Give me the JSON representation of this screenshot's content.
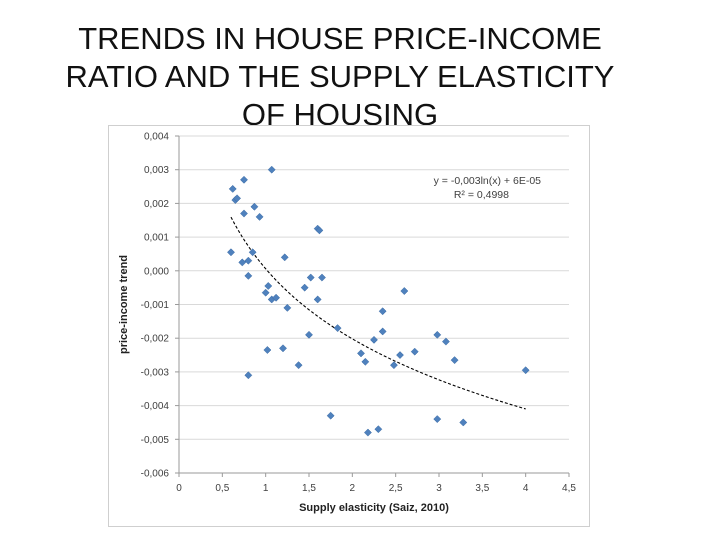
{
  "slide": {
    "title_lines": [
      "TRENDS IN HOUSE PRICE-INCOME",
      "RATIO AND THE SUPPLY ELASTICITY",
      "OF HOUSING"
    ]
  },
  "chart_data": {
    "type": "scatter",
    "xlabel": "Supply elasticity (Saiz, 2010)",
    "ylabel": "price-income trend",
    "xlim": [
      0,
      4.5
    ],
    "ylim": [
      -0.006,
      0.004
    ],
    "x_ticks": [
      0,
      0.5,
      1,
      1.5,
      2,
      2.5,
      3,
      3.5,
      4,
      4.5
    ],
    "x_tick_labels": [
      "0",
      "0,5",
      "1",
      "1,5",
      "2",
      "2,5",
      "3",
      "3,5",
      "4",
      "4,5"
    ],
    "y_ticks": [
      0.004,
      0.003,
      0.002,
      0.001,
      0.0,
      -0.001,
      -0.002,
      -0.003,
      -0.004,
      -0.005,
      -0.006
    ],
    "y_tick_labels": [
      "0,004",
      "0,003",
      "0,002",
      "0,001",
      "0,000",
      "-0,001",
      "-0,002",
      "-0,003",
      "-0,004",
      "-0,005",
      "-0,006"
    ],
    "grid": "horizontal",
    "marker_color": "#4f81bd",
    "trendline": {
      "type": "logarithmic",
      "equation": "y = -0,003ln(x) + 6E-05",
      "r_squared": "R² = 0,4998",
      "a": -0.003,
      "b": 6e-05,
      "x_range": [
        0.6,
        4.0
      ],
      "color": "#000000",
      "style": "dashed"
    },
    "points": [
      {
        "x": 0.62,
        "y": 0.00243
      },
      {
        "x": 0.65,
        "y": 0.0021
      },
      {
        "x": 0.67,
        "y": 0.00215
      },
      {
        "x": 0.75,
        "y": 0.0027
      },
      {
        "x": 0.75,
        "y": 0.0017
      },
      {
        "x": 0.87,
        "y": 0.0019
      },
      {
        "x": 0.93,
        "y": 0.0016
      },
      {
        "x": 1.07,
        "y": 0.003
      },
      {
        "x": 0.6,
        "y": 0.00055
      },
      {
        "x": 0.73,
        "y": 0.00025
      },
      {
        "x": 0.8,
        "y": 0.0003
      },
      {
        "x": 0.85,
        "y": 0.00055
      },
      {
        "x": 0.8,
        "y": -0.00015
      },
      {
        "x": 1.0,
        "y": -0.00065
      },
      {
        "x": 1.03,
        "y": -0.00045
      },
      {
        "x": 1.07,
        "y": -0.00085
      },
      {
        "x": 1.12,
        "y": -0.0008
      },
      {
        "x": 1.22,
        "y": 0.0004
      },
      {
        "x": 1.25,
        "y": -0.0011
      },
      {
        "x": 0.8,
        "y": -0.0031
      },
      {
        "x": 1.02,
        "y": -0.00235
      },
      {
        "x": 1.2,
        "y": -0.0023
      },
      {
        "x": 1.38,
        "y": -0.0028
      },
      {
        "x": 1.45,
        "y": -0.0005
      },
      {
        "x": 1.52,
        "y": -0.0002
      },
      {
        "x": 1.6,
        "y": 0.00125
      },
      {
        "x": 1.62,
        "y": 0.0012
      },
      {
        "x": 1.6,
        "y": -0.00085
      },
      {
        "x": 1.65,
        "y": -0.0002
      },
      {
        "x": 1.5,
        "y": -0.0019
      },
      {
        "x": 1.75,
        "y": -0.0043
      },
      {
        "x": 1.83,
        "y": -0.0017
      },
      {
        "x": 2.1,
        "y": -0.00245
      },
      {
        "x": 2.15,
        "y": -0.0027
      },
      {
        "x": 2.18,
        "y": -0.0048
      },
      {
        "x": 2.25,
        "y": -0.00205
      },
      {
        "x": 2.3,
        "y": -0.0047
      },
      {
        "x": 2.35,
        "y": -0.0012
      },
      {
        "x": 2.35,
        "y": -0.0018
      },
      {
        "x": 2.48,
        "y": -0.0028
      },
      {
        "x": 2.55,
        "y": -0.0025
      },
      {
        "x": 2.6,
        "y": -0.0006
      },
      {
        "x": 2.72,
        "y": -0.0024
      },
      {
        "x": 2.98,
        "y": -0.0019
      },
      {
        "x": 2.98,
        "y": -0.0044
      },
      {
        "x": 3.08,
        "y": -0.0021
      },
      {
        "x": 3.18,
        "y": -0.00265
      },
      {
        "x": 3.28,
        "y": -0.0045
      },
      {
        "x": 4.0,
        "y": -0.00295
      }
    ]
  }
}
